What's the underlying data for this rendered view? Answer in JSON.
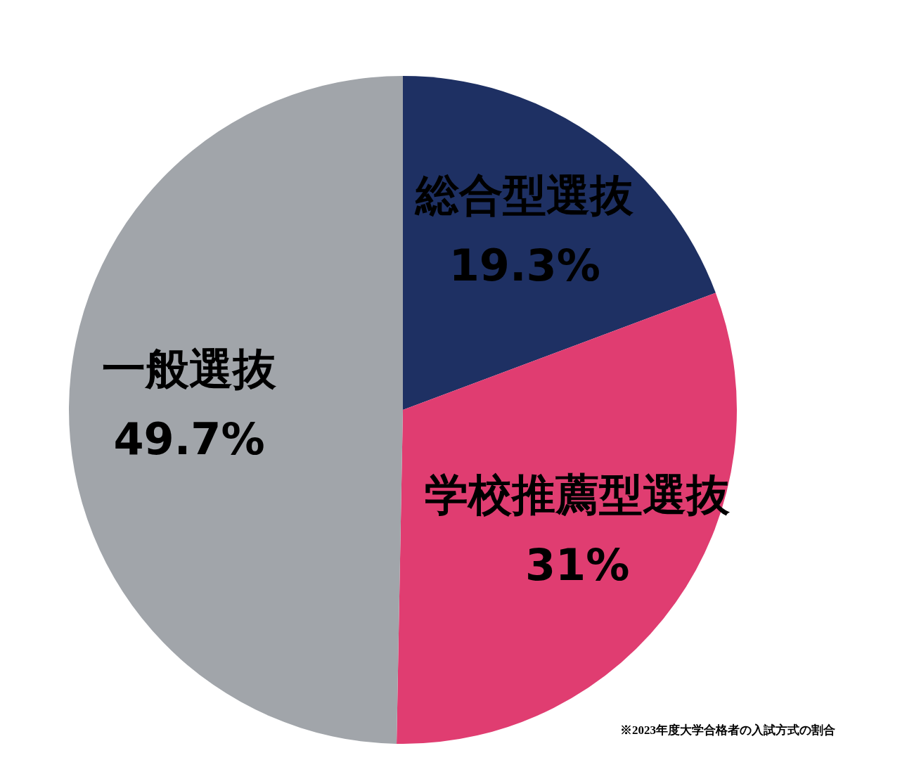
{
  "chart_data": {
    "type": "pie",
    "categories": [
      "総合型選抜",
      "学校推薦型選抜",
      "一般選抜"
    ],
    "values": [
      19.3,
      31,
      49.7
    ],
    "colors": [
      "#1e3063",
      "#e03d71",
      "#a1a5aa"
    ],
    "value_labels": [
      "19.3%",
      "31%",
      "49.7%"
    ],
    "legend": false,
    "annotations": [
      "※2023年度大学合格者の入試方式の割合"
    ]
  }
}
